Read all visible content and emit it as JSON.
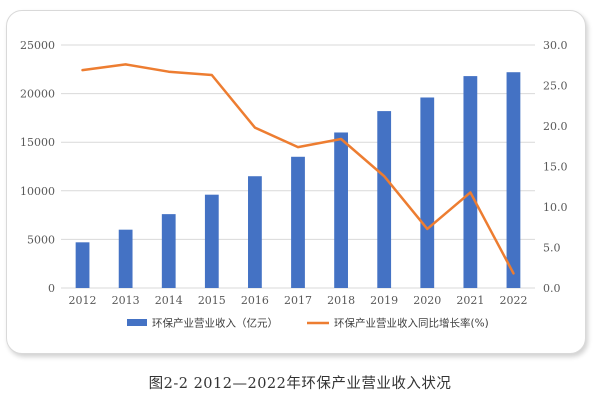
{
  "caption": "图2-2 2012—2022年环保产业营业收入状况",
  "colors": {
    "bar": "#4472C4",
    "line": "#ED7D31",
    "grid": "#d9d9d9",
    "axis_text": "#595959"
  },
  "chart_data": {
    "type": "bar",
    "categories": [
      "2012",
      "2013",
      "2014",
      "2015",
      "2016",
      "2017",
      "2018",
      "2019",
      "2020",
      "2021",
      "2022"
    ],
    "series": [
      {
        "name": "环保产业营业收入（亿元）",
        "type": "bar",
        "axis": "left",
        "values": [
          4700,
          6000,
          7600,
          9600,
          11500,
          13500,
          16000,
          18200,
          19600,
          21800,
          22200
        ]
      },
      {
        "name": "环保产业营业收入同比增长率(%)",
        "type": "line",
        "axis": "right",
        "values": [
          26.9,
          27.6,
          26.7,
          26.3,
          19.8,
          17.4,
          18.4,
          13.8,
          7.3,
          11.8,
          1.8
        ]
      }
    ],
    "y_left": {
      "range": [
        0,
        25000
      ],
      "ticks": [
        "0",
        "5000",
        "10000",
        "15000",
        "20000",
        "25000"
      ]
    },
    "y_right": {
      "range": [
        0,
        30
      ],
      "ticks": [
        "0.0",
        "5.0",
        "10.0",
        "15.0",
        "20.0",
        "25.0",
        "30.0"
      ]
    },
    "grid": true,
    "legend_position": "bottom"
  }
}
